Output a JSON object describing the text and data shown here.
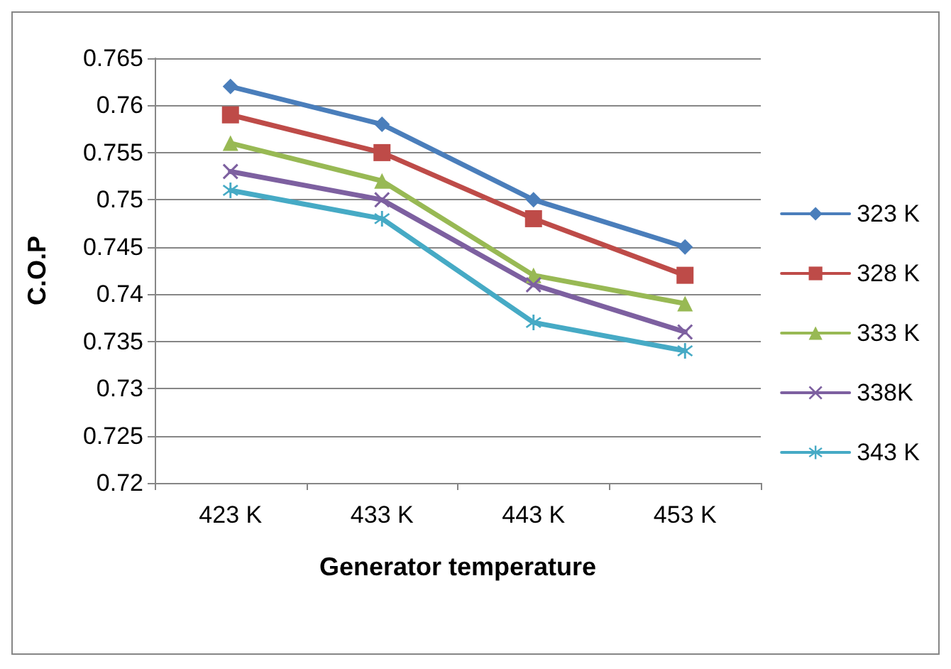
{
  "chart_data": {
    "type": "line",
    "xlabel": "Generator temperature",
    "ylabel": "C.O.P",
    "categories": [
      "423 K",
      "433 K",
      "443 K",
      "453 K"
    ],
    "series": [
      {
        "name": "323 K",
        "color": "#4a7ebb",
        "marker": "diamond",
        "values": [
          0.762,
          0.758,
          0.75,
          0.745
        ]
      },
      {
        "name": "328 K",
        "color": "#be4b48",
        "marker": "square",
        "values": [
          0.759,
          0.755,
          0.748,
          0.742
        ]
      },
      {
        "name": "333 K",
        "color": "#98b954",
        "marker": "triangle",
        "values": [
          0.756,
          0.752,
          0.742,
          0.739
        ]
      },
      {
        "name": "338K",
        "color": "#7d60a0",
        "marker": "cross",
        "values": [
          0.753,
          0.75,
          0.741,
          0.736
        ]
      },
      {
        "name": "343 K",
        "color": "#46aac5",
        "marker": "star",
        "values": [
          0.751,
          0.748,
          0.737,
          0.734
        ]
      }
    ],
    "ylim": [
      0.72,
      0.765
    ],
    "yticks": [
      0.72,
      0.725,
      0.73,
      0.735,
      0.74,
      0.745,
      0.75,
      0.755,
      0.76,
      0.765
    ],
    "grid": "y",
    "legend": "right",
    "line_style": "solid"
  }
}
